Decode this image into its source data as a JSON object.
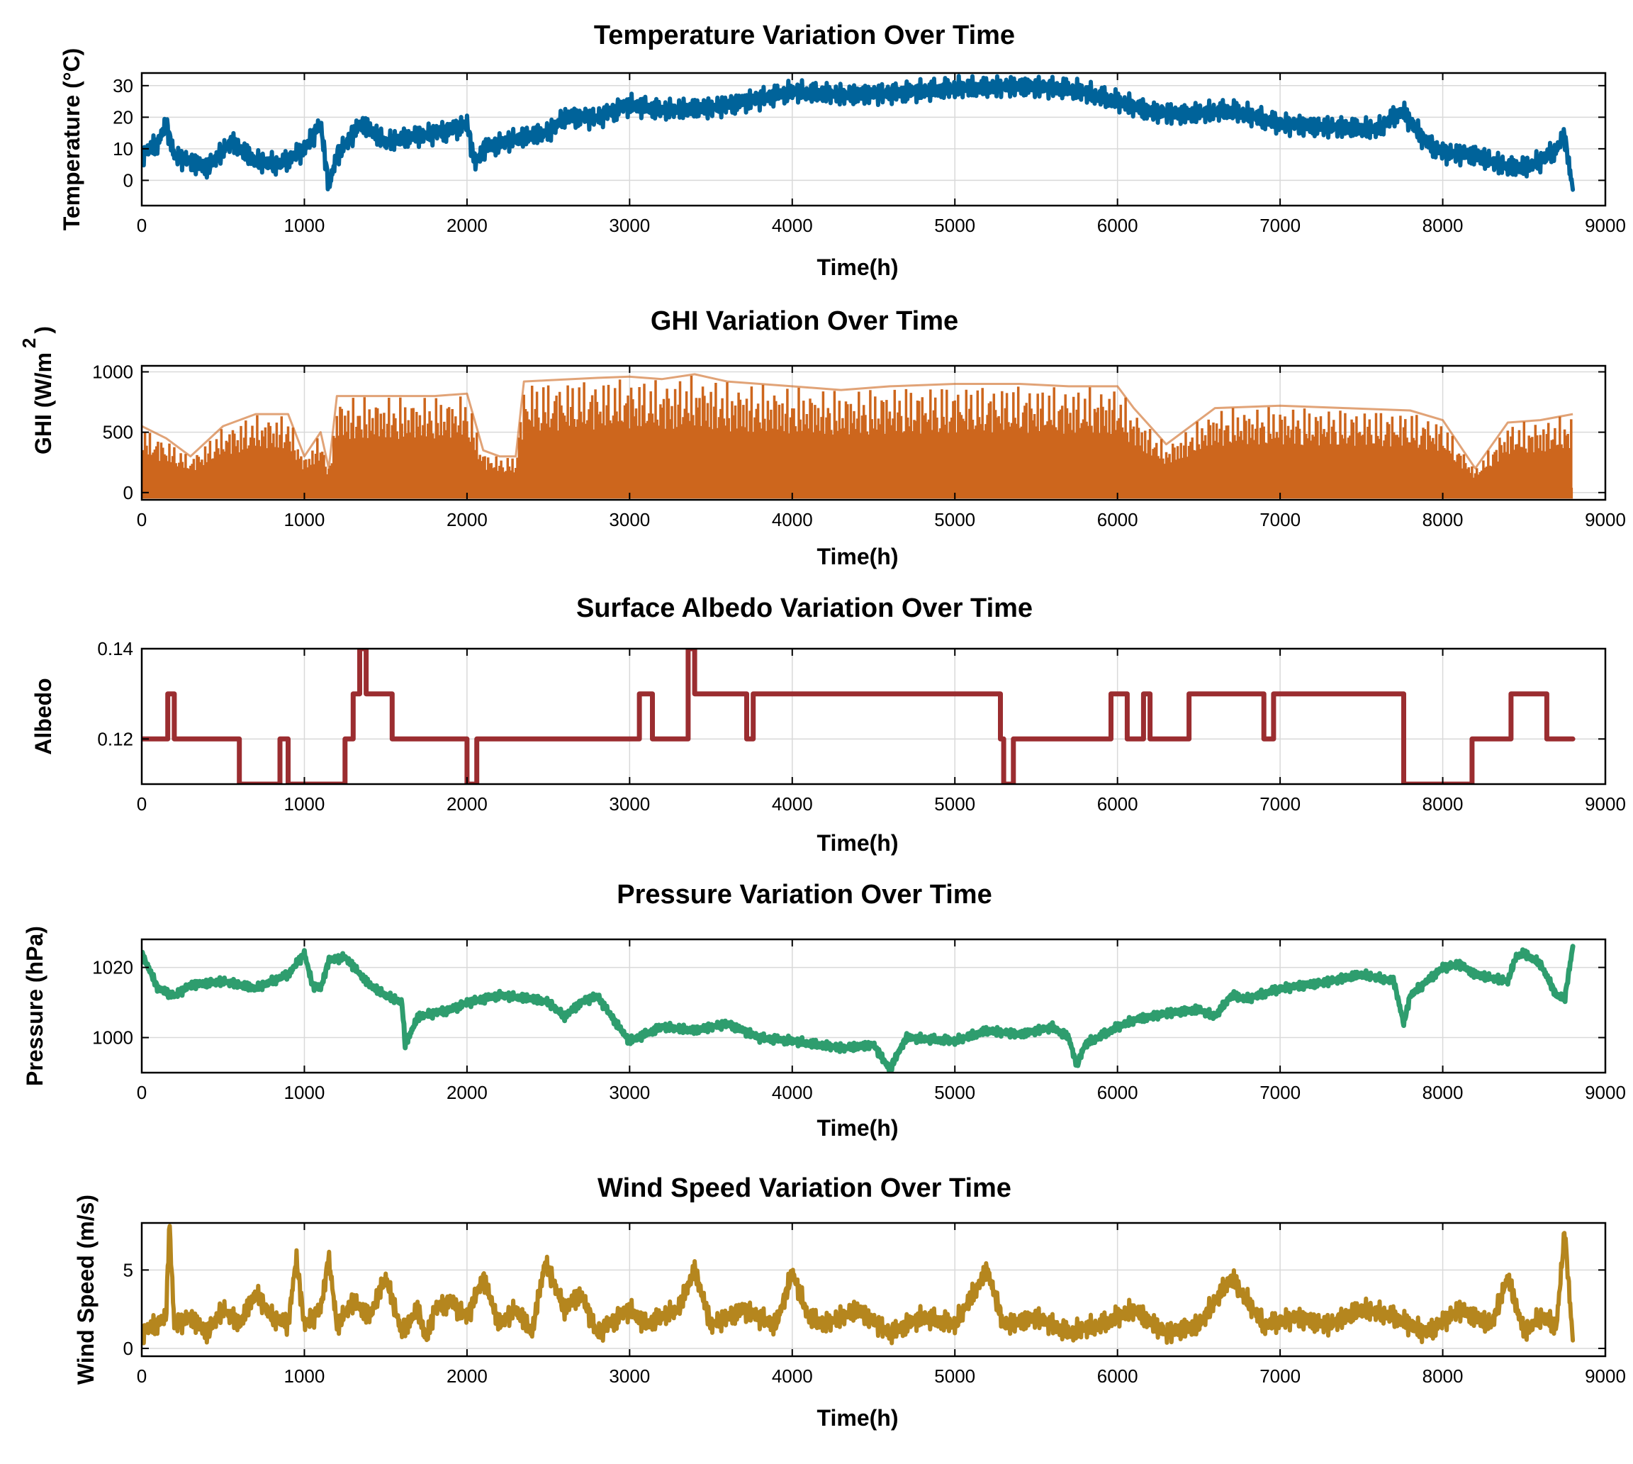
{
  "chart_data": [
    {
      "id": "temperature",
      "type": "line",
      "title": "Temperature Variation Over Time",
      "xlabel": "Time(h)",
      "ylabel": "Temperature (°C)",
      "xlim": [
        0,
        9000
      ],
      "ylim": [
        -8,
        34
      ],
      "xticks": [
        0,
        1000,
        2000,
        3000,
        4000,
        5000,
        6000,
        7000,
        8000,
        9000
      ],
      "yticks": [
        0,
        10,
        20,
        30
      ],
      "grid": true,
      "color": "#00639a",
      "series": [
        {
          "name": "Temperature",
          "x": [
            0,
            100,
            150,
            200,
            300,
            400,
            550,
            700,
            850,
            1000,
            1100,
            1150,
            1200,
            1350,
            1500,
            1700,
            1900,
            2000,
            2050,
            2100,
            2300,
            2500,
            2600,
            2800,
            3000,
            3200,
            3500,
            3800,
            4000,
            4300,
            4700,
            5000,
            5400,
            5700,
            6000,
            6200,
            6400,
            6700,
            7000,
            7300,
            7600,
            7750,
            7900,
            8000,
            8200,
            8400,
            8500,
            8600,
            8700,
            8750,
            8800
          ],
          "y": [
            8,
            12,
            18,
            8,
            6,
            4,
            12,
            6,
            5,
            10,
            18,
            -2,
            8,
            18,
            12,
            14,
            16,
            18,
            5,
            10,
            13,
            15,
            20,
            20,
            24,
            22,
            23,
            26,
            28,
            27,
            28,
            29,
            30,
            29,
            25,
            22,
            21,
            22,
            18,
            17,
            16,
            22,
            12,
            9,
            8,
            4,
            4,
            6,
            10,
            14,
            -3
          ]
        }
      ]
    },
    {
      "id": "ghi",
      "type": "area",
      "title": "GHI Variation Over Time",
      "xlabel": "Time(h)",
      "ylabel": "GHI (W/m",
      "ylabel_superscript": "2",
      "ylabel_suffix": ")",
      "xlim": [
        0,
        9000
      ],
      "ylim": [
        -60,
        1050
      ],
      "xticks": [
        0,
        1000,
        2000,
        3000,
        4000,
        5000,
        6000,
        7000,
        8000,
        9000
      ],
      "yticks": [
        0,
        500,
        1000
      ],
      "grid": true,
      "color": "#cd661d",
      "series": [
        {
          "name": "GHI daily peak envelope",
          "x": [
            0,
            150,
            300,
            500,
            700,
            900,
            1000,
            1100,
            1150,
            1200,
            1500,
            1800,
            2000,
            2100,
            2200,
            2300,
            2350,
            2500,
            2800,
            3000,
            3200,
            3400,
            3600,
            3800,
            4000,
            4300,
            4600,
            5000,
            5400,
            5700,
            6000,
            6100,
            6200,
            6300,
            6600,
            7000,
            7400,
            7800,
            8000,
            8200,
            8400,
            8600,
            8800
          ],
          "y": [
            550,
            450,
            300,
            550,
            650,
            650,
            300,
            500,
            200,
            800,
            800,
            800,
            820,
            350,
            300,
            300,
            920,
            930,
            950,
            960,
            940,
            980,
            920,
            900,
            880,
            850,
            880,
            900,
            900,
            880,
            880,
            700,
            550,
            400,
            700,
            720,
            700,
            680,
            600,
            200,
            580,
            600,
            650
          ]
        }
      ]
    },
    {
      "id": "albedo",
      "type": "line",
      "title": "Surface Albedo Variation Over Time",
      "xlabel": "Time(h)",
      "ylabel": "Albedo",
      "xlim": [
        0,
        9000
      ],
      "ylim": [
        0.11,
        0.14
      ],
      "xticks": [
        0,
        1000,
        2000,
        3000,
        4000,
        5000,
        6000,
        7000,
        8000,
        9000
      ],
      "yticks": [
        0.12,
        0.14
      ],
      "grid": true,
      "color": "#9b2d30",
      "series": [
        {
          "name": "Albedo",
          "x": [
            0,
            160,
            160,
            200,
            200,
            600,
            600,
            850,
            850,
            900,
            900,
            1250,
            1250,
            1300,
            1300,
            1340,
            1340,
            1380,
            1380,
            1540,
            1540,
            2000,
            2000,
            2060,
            2060,
            3060,
            3060,
            3140,
            3140,
            3360,
            3360,
            3400,
            3400,
            3720,
            3720,
            3760,
            3760,
            5280,
            5280,
            5300,
            5300,
            5360,
            5360,
            5960,
            5960,
            6060,
            6060,
            6160,
            6160,
            6200,
            6200,
            6440,
            6440,
            6900,
            6900,
            6960,
            6960,
            7760,
            7760,
            8180,
            8180,
            8420,
            8420,
            8640,
            8640,
            8800
          ],
          "y": [
            0.12,
            0.12,
            0.13,
            0.13,
            0.12,
            0.12,
            0.11,
            0.11,
            0.12,
            0.12,
            0.11,
            0.11,
            0.12,
            0.12,
            0.13,
            0.13,
            0.14,
            0.14,
            0.13,
            0.13,
            0.12,
            0.12,
            0.11,
            0.11,
            0.12,
            0.12,
            0.13,
            0.13,
            0.12,
            0.12,
            0.14,
            0.14,
            0.13,
            0.13,
            0.12,
            0.12,
            0.13,
            0.13,
            0.12,
            0.12,
            0.11,
            0.11,
            0.12,
            0.12,
            0.13,
            0.13,
            0.12,
            0.12,
            0.13,
            0.13,
            0.12,
            0.12,
            0.13,
            0.13,
            0.12,
            0.12,
            0.13,
            0.13,
            0.11,
            0.11,
            0.12,
            0.12,
            0.13,
            0.13,
            0.12,
            0.12
          ]
        }
      ]
    },
    {
      "id": "pressure",
      "type": "line",
      "title": "Pressure Variation Over Time",
      "xlabel": "Time(h)",
      "ylabel": "Pressure (hPa)",
      "xlim": [
        0,
        9000
      ],
      "ylim": [
        990,
        1028
      ],
      "xticks": [
        0,
        1000,
        2000,
        3000,
        4000,
        5000,
        6000,
        7000,
        8000,
        9000
      ],
      "yticks": [
        1000,
        1020
      ],
      "grid": true,
      "color": "#2e9d6e",
      "series": [
        {
          "name": "Pressure",
          "x": [
            0,
            100,
            200,
            300,
            500,
            700,
            900,
            1000,
            1050,
            1100,
            1150,
            1250,
            1400,
            1500,
            1600,
            1620,
            1700,
            1900,
            2000,
            2200,
            2400,
            2500,
            2600,
            2700,
            2800,
            2950,
            3000,
            3200,
            3400,
            3600,
            3800,
            4000,
            4300,
            4500,
            4600,
            4700,
            5000,
            5200,
            5400,
            5600,
            5700,
            5750,
            5800,
            6000,
            6100,
            6300,
            6500,
            6600,
            6700,
            6800,
            7000,
            7300,
            7500,
            7700,
            7760,
            7800,
            8000,
            8100,
            8200,
            8400,
            8450,
            8500,
            8600,
            8700,
            8750,
            8800
          ],
          "y": [
            1024,
            1014,
            1012,
            1015,
            1016,
            1014,
            1018,
            1024,
            1015,
            1014,
            1022,
            1023,
            1015,
            1012,
            1010,
            998,
            1006,
            1008,
            1010,
            1012,
            1011,
            1010,
            1006,
            1010,
            1012,
            1002,
            999,
            1003,
            1002,
            1004,
            1000,
            999,
            997,
            998,
            991,
            1000,
            999,
            1002,
            1001,
            1003,
            1000,
            992,
            998,
            1003,
            1005,
            1007,
            1008,
            1006,
            1012,
            1011,
            1014,
            1016,
            1018,
            1016,
            1004,
            1012,
            1020,
            1021,
            1018,
            1016,
            1023,
            1024,
            1021,
            1012,
            1011,
            1026
          ]
        }
      ]
    },
    {
      "id": "wind",
      "type": "line",
      "title": "Wind Speed Variation Over Time",
      "xlabel": "Time(h)",
      "ylabel": "Wind Speed (m/s)",
      "xlim": [
        0,
        9000
      ],
      "ylim": [
        -0.5,
        8
      ],
      "xticks": [
        0,
        1000,
        2000,
        3000,
        4000,
        5000,
        6000,
        7000,
        8000,
        9000
      ],
      "yticks": [
        0,
        5
      ],
      "grid": true,
      "color": "#b5861e",
      "series": [
        {
          "name": "Wind Speed",
          "x": [
            0,
            80,
            150,
            170,
            200,
            300,
            400,
            500,
            600,
            700,
            800,
            900,
            950,
            1000,
            1100,
            1150,
            1200,
            1300,
            1400,
            1500,
            1600,
            1700,
            1750,
            1800,
            1900,
            2000,
            2100,
            2200,
            2300,
            2400,
            2480,
            2600,
            2700,
            2800,
            3000,
            3100,
            3300,
            3400,
            3500,
            3700,
            3900,
            4000,
            4100,
            4200,
            4400,
            4600,
            4800,
            5000,
            5200,
            5300,
            5500,
            5700,
            5900,
            6100,
            6300,
            6500,
            6700,
            6900,
            7100,
            7300,
            7500,
            7700,
            7900,
            8100,
            8300,
            8400,
            8500,
            8600,
            8700,
            8750,
            8800
          ],
          "y": [
            1.0,
            1.5,
            2.0,
            8.0,
            1.5,
            2.0,
            1.0,
            2.5,
            1.5,
            3.5,
            2.0,
            1.5,
            5.8,
            1.5,
            2.5,
            5.8,
            1.5,
            3.0,
            2.0,
            4.5,
            1.0,
            2.5,
            0.5,
            2.5,
            3.0,
            2.0,
            4.5,
            1.5,
            2.5,
            1.0,
            5.5,
            2.5,
            3.5,
            1.0,
            2.5,
            1.5,
            2.5,
            5.0,
            1.5,
            2.5,
            1.5,
            4.8,
            2.0,
            1.5,
            2.5,
            1.0,
            2.0,
            1.5,
            5.0,
            1.5,
            2.0,
            1.0,
            1.5,
            2.5,
            1.0,
            1.5,
            4.5,
            1.5,
            2.0,
            1.5,
            2.5,
            2.0,
            1.0,
            2.5,
            1.5,
            4.5,
            1.0,
            2.0,
            1.5,
            7.5,
            0.5
          ]
        }
      ]
    }
  ]
}
